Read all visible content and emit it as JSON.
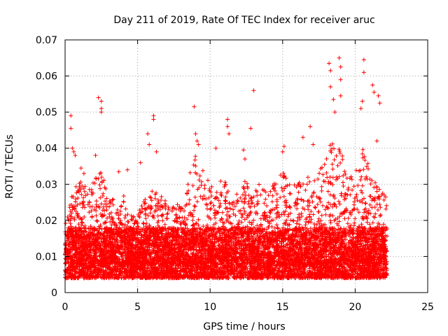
{
  "chart_data": {
    "type": "scatter",
    "title": "Day 211 of 2019, Rate Of TEC Index for receiver aruc",
    "xlabel": "GPS time / hours",
    "ylabel": "ROTI / TECUs",
    "xlim": [
      0,
      25
    ],
    "ylim": [
      0,
      0.07
    ],
    "xticks": [
      0,
      5,
      10,
      15,
      20,
      25
    ],
    "xtick_labels": [
      "0",
      "5",
      "10",
      "15",
      "20",
      "25"
    ],
    "yticks": [
      0,
      0.01,
      0.02,
      0.03,
      0.04,
      0.05,
      0.06,
      0.07
    ],
    "ytick_labels": [
      "0",
      "0.01",
      "0.02",
      "0.03",
      "0.04",
      "0.05",
      "0.06",
      "0.07"
    ],
    "grid": true,
    "marker": "+",
    "color": "#ff0000",
    "data_range_x": [
      0,
      22.2
    ],
    "series": [
      {
        "values": [
          [
            0.4,
            0.049
          ],
          [
            0.4,
            0.0455
          ],
          [
            0.5,
            0.04
          ],
          [
            0.6,
            0.039
          ],
          [
            0.7,
            0.038
          ],
          [
            1.1,
            0.0345
          ],
          [
            1.3,
            0.033
          ],
          [
            2.1,
            0.038
          ],
          [
            2.3,
            0.054
          ],
          [
            2.5,
            0.053
          ],
          [
            2.5,
            0.051
          ],
          [
            2.5,
            0.05
          ],
          [
            3.7,
            0.0335
          ],
          [
            4.3,
            0.034
          ],
          [
            5.2,
            0.036
          ],
          [
            5.7,
            0.044
          ],
          [
            5.8,
            0.041
          ],
          [
            6.1,
            0.049
          ],
          [
            6.1,
            0.048
          ],
          [
            6.3,
            0.039
          ],
          [
            8.9,
            0.0515
          ],
          [
            9.0,
            0.044
          ],
          [
            9.1,
            0.042
          ],
          [
            9.2,
            0.041
          ],
          [
            10.4,
            0.04
          ],
          [
            11.2,
            0.048
          ],
          [
            11.2,
            0.046
          ],
          [
            11.3,
            0.044
          ],
          [
            12.3,
            0.0395
          ],
          [
            12.4,
            0.037
          ],
          [
            12.8,
            0.0455
          ],
          [
            13.0,
            0.056
          ],
          [
            15.1,
            0.0405
          ],
          [
            15.0,
            0.039
          ],
          [
            16.4,
            0.043
          ],
          [
            16.9,
            0.046
          ],
          [
            17.1,
            0.041
          ],
          [
            18.2,
            0.0635
          ],
          [
            18.3,
            0.0615
          ],
          [
            18.3,
            0.057
          ],
          [
            18.5,
            0.0535
          ],
          [
            18.6,
            0.05
          ],
          [
            18.9,
            0.065
          ],
          [
            19.0,
            0.0625
          ],
          [
            19.0,
            0.059
          ],
          [
            19.0,
            0.0545
          ],
          [
            20.6,
            0.0645
          ],
          [
            20.6,
            0.061
          ],
          [
            20.5,
            0.053
          ],
          [
            20.4,
            0.051
          ],
          [
            21.2,
            0.0575
          ],
          [
            21.3,
            0.0555
          ],
          [
            21.6,
            0.0545
          ],
          [
            21.7,
            0.0525
          ],
          [
            21.5,
            0.042
          ],
          [
            21.9,
            0.0275
          ],
          [
            22.0,
            0.027
          ],
          [
            22.1,
            0.0265
          ]
        ]
      }
    ]
  }
}
